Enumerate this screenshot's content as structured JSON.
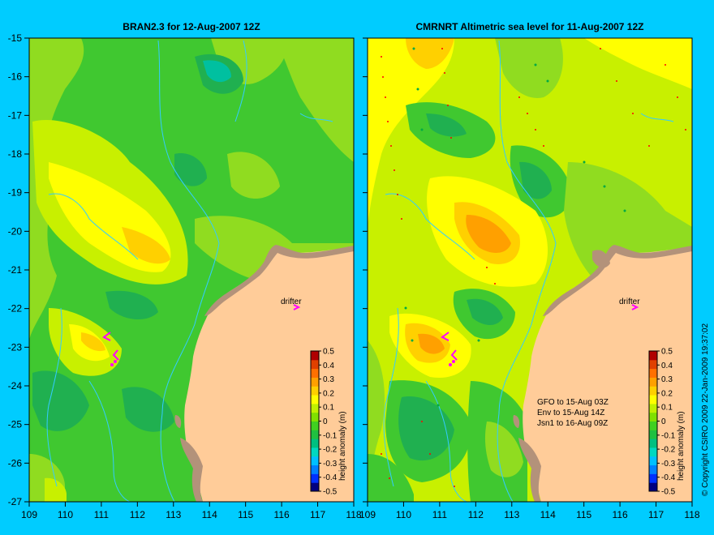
{
  "left_panel": {
    "title": "BRAN2.3 for 12-Aug-2007 12Z",
    "drifter_label": "drifter",
    "colorbar_label": "height anomaly (m)"
  },
  "right_panel": {
    "title": "CMRNRT Altimetric sea level  for 11-Aug-2007 12Z",
    "drifter_label": "drifter",
    "colorbar_label": "height anomaly (m)",
    "satellite_notes": [
      "GFO to 15-Aug 03Z",
      "Env to 15-Aug 14Z",
      "Jsn1 to 16-Aug 09Z"
    ]
  },
  "axes": {
    "latitude_ticks": [
      "-15",
      "-16",
      "-17",
      "-18",
      "-19",
      "-20",
      "-21",
      "-22",
      "-23",
      "-24",
      "-25",
      "-26",
      "-27"
    ],
    "longitude_ticks": [
      "109",
      "110",
      "111",
      "112",
      "113",
      "114",
      "115",
      "116",
      "117",
      "118"
    ],
    "lat_range": [
      -27,
      -15
    ],
    "lon_range": [
      109,
      118
    ]
  },
  "colorbar": {
    "ticks": [
      "0.5",
      "0.4",
      "0.3",
      "0.2",
      "0.1",
      "0",
      "-0.1",
      "-0.2",
      "-0.3",
      "-0.4",
      "-0.5"
    ],
    "range": [
      -0.5,
      0.5
    ],
    "colors": [
      "#000080",
      "#0030ff",
      "#0080ff",
      "#00c0ff",
      "#00d8c0",
      "#00c080",
      "#20c040",
      "#40d020",
      "#80e000",
      "#c0f000",
      "#ffff00",
      "#ffd000",
      "#ffa000",
      "#ff7000",
      "#e04000",
      "#b00000"
    ]
  },
  "copyright": "© Copyright CSIRO 2009   22-Jan-2009 19:37:02",
  "colors": {
    "background": "#00ccff",
    "land": "#ffcc99",
    "coastline": "#b3927a",
    "isobath": "#33ccff",
    "drifter_marker": "#ff00ff"
  }
}
